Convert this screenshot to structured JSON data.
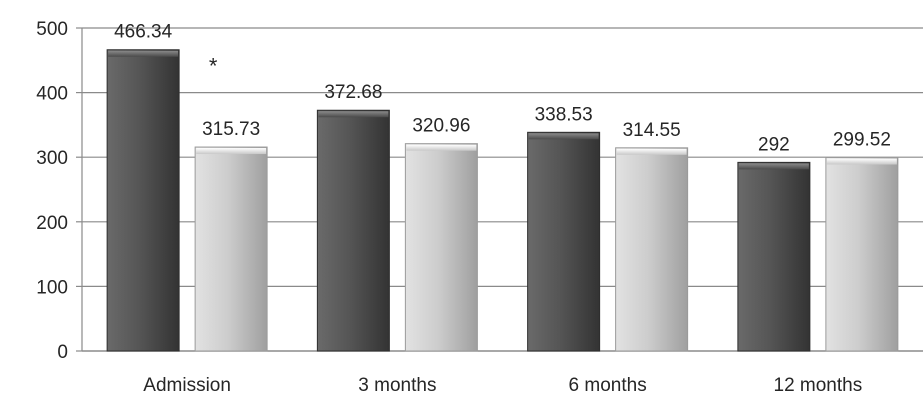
{
  "chart_data": {
    "type": "bar",
    "categories": [
      "Admission",
      "3 months",
      "6 months",
      "12 months"
    ],
    "series": [
      {
        "values": [
          466.34,
          372.68,
          338.53,
          292
        ],
        "color": "#4a4a4a"
      },
      {
        "values": [
          315.73,
          320.96,
          314.55,
          299.52
        ],
        "color": "#c4c4c4"
      }
    ],
    "data_labels": [
      [
        "466.34",
        "372.68",
        "338.53",
        "292"
      ],
      [
        "315.73",
        "320.96",
        "314.55",
        "299.52"
      ]
    ],
    "y_ticks": [
      "0",
      "100",
      "200",
      "300",
      "400",
      "500"
    ],
    "ylim": [
      0,
      500
    ],
    "grid": true,
    "legend": "none",
    "annotations": [
      {
        "text": "*",
        "category": "Admission",
        "series_index": 1
      }
    ]
  }
}
